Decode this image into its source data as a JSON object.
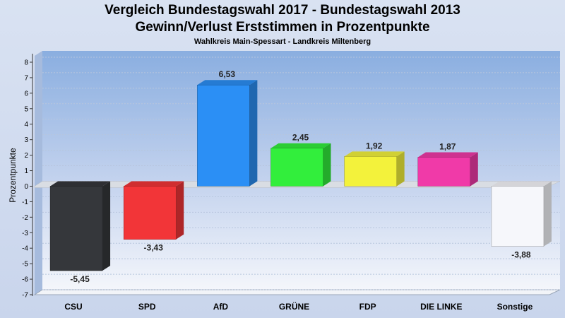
{
  "title": "Vergleich Bundestagswahl 2017 - Bundestagswahl 2013",
  "subtitle": "Gewinn/Verlust Erststimmen in Prozentpunkte",
  "subsubtitle": "Wahlkreis Main-Spessart - Landkreis Miltenberg",
  "chart_data": {
    "type": "bar",
    "title": "Vergleich Bundestagswahl 2017 - Bundestagswahl 2013",
    "subtitle": "Gewinn/Verlust Erststimmen in Prozentpunkte",
    "xlabel": "",
    "ylabel": "Prozentpunkte",
    "ylim": [
      -7,
      8
    ],
    "yticks": [
      8,
      7,
      6,
      5,
      4,
      3,
      2,
      1,
      0,
      -1,
      -2,
      -3,
      -4,
      -5,
      -6,
      -7
    ],
    "categories": [
      "CSU",
      "SPD",
      "AfD",
      "GRÜNE",
      "FDP",
      "DIE LINKE",
      "Sonstige"
    ],
    "values": [
      -5.45,
      -3.43,
      6.53,
      2.45,
      1.92,
      1.87,
      -3.88
    ],
    "value_labels": [
      "-5,45",
      "-3,43",
      "6,53",
      "2,45",
      "1,92",
      "1,87",
      "-3,88"
    ],
    "colors": [
      "#35373b",
      "#f23538",
      "#2b8ff5",
      "#32ee3c",
      "#f3f23b",
      "#f03aa8",
      "#f6f7fb"
    ],
    "grid": true,
    "legend": "none"
  }
}
